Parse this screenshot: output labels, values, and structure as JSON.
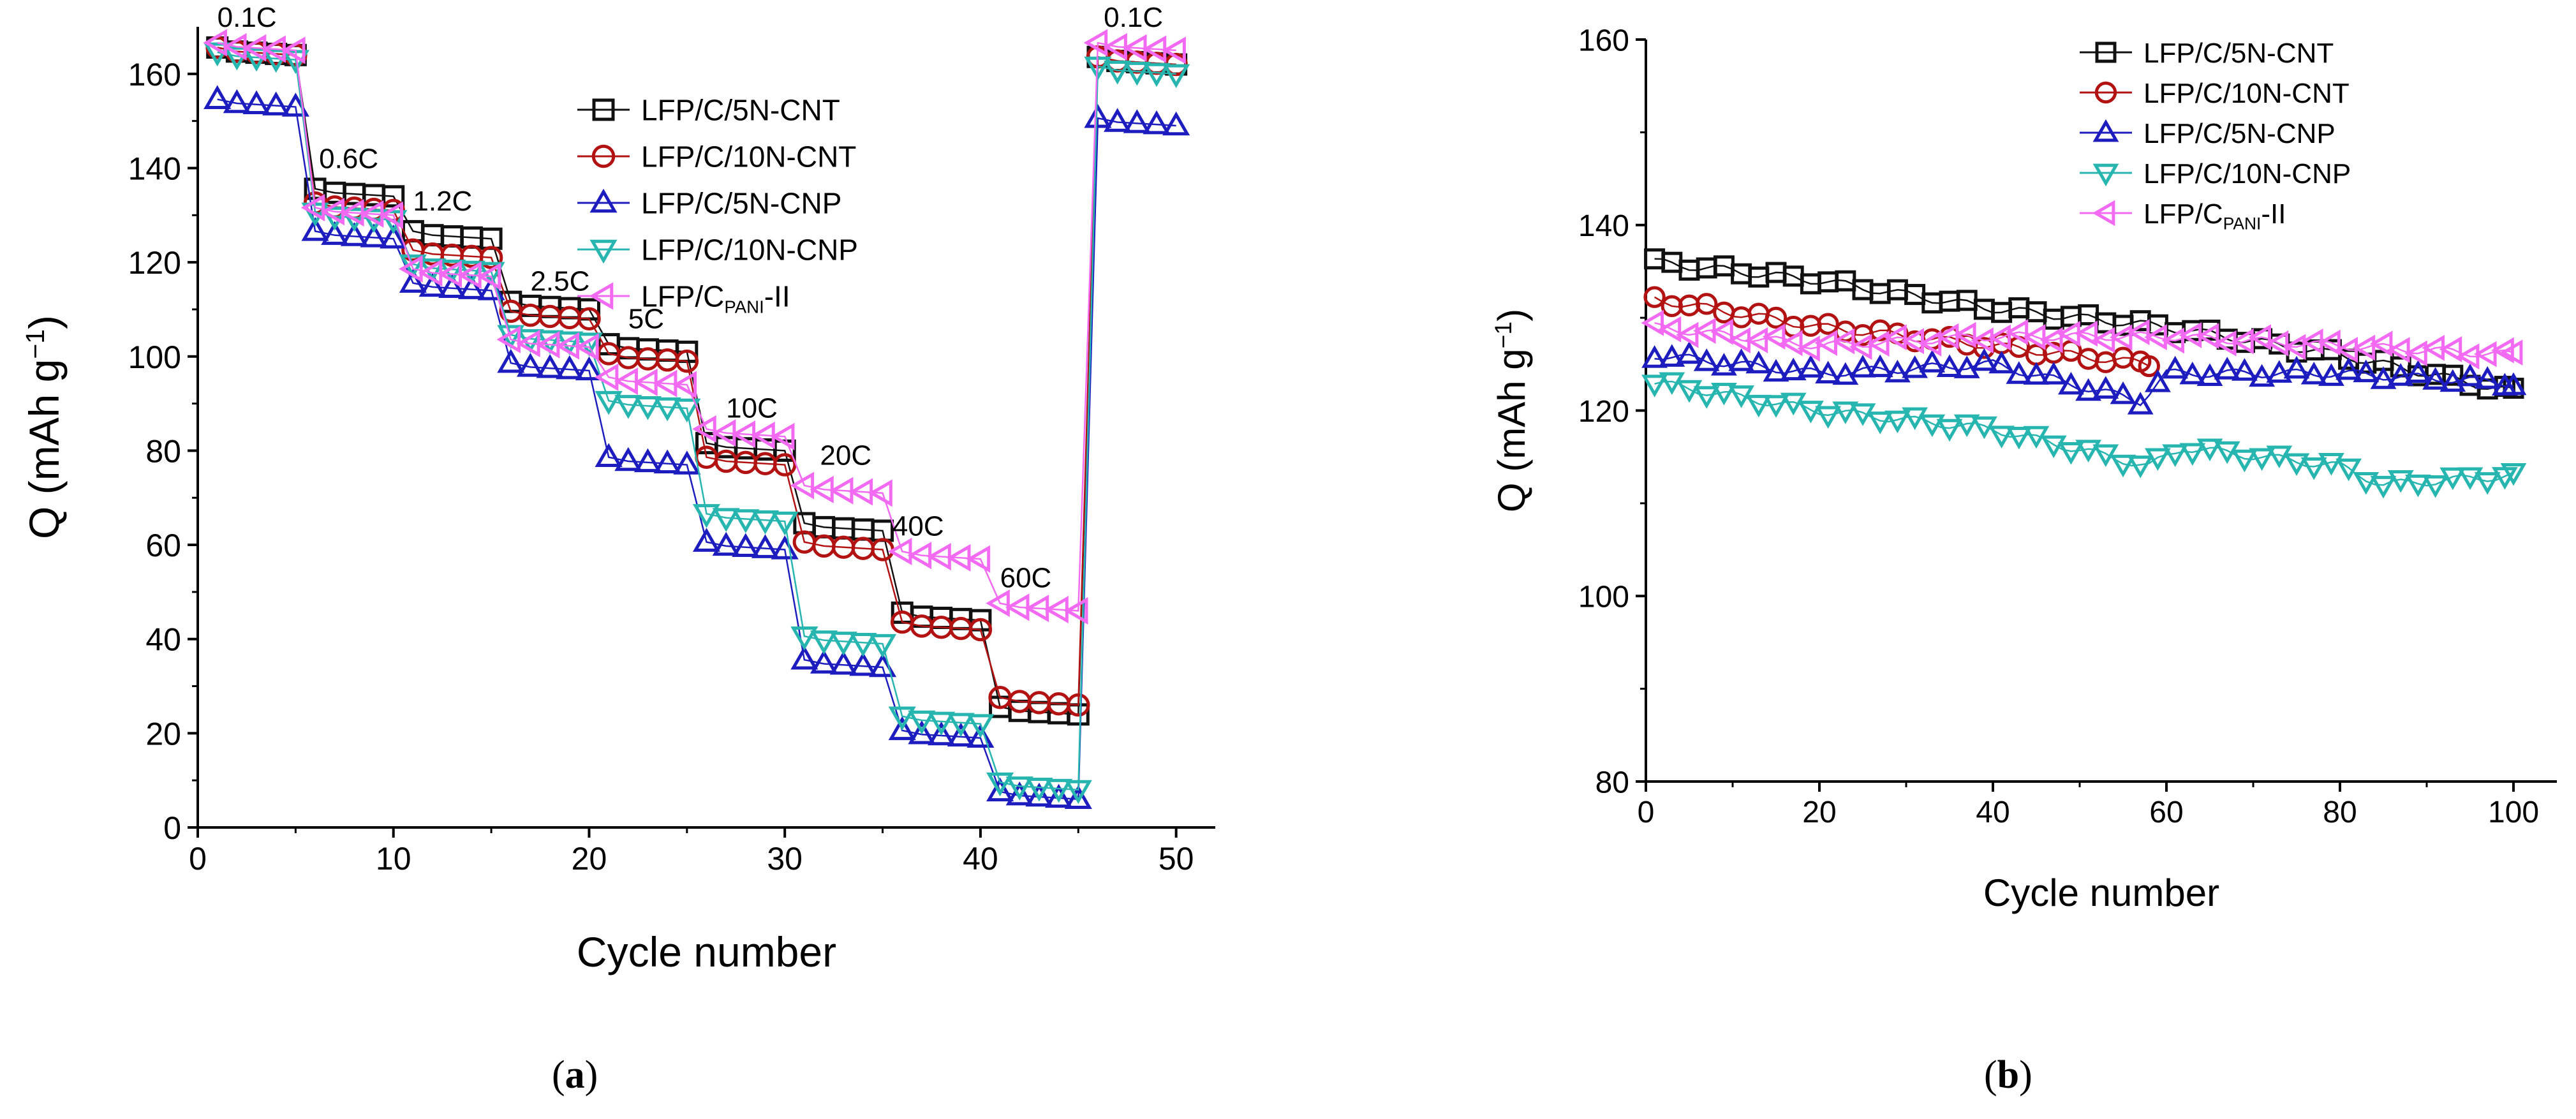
{
  "panel_labels": {
    "a": "a",
    "b": "b"
  },
  "colors": {
    "LFP/C/5N-CNT": "#111111",
    "LFP/C/10N-CNT": "#b31212",
    "LFP/C/5N-CNP": "#1d1dbf",
    "LFP/C/10N-CNP": "#27b5b0",
    "LFP/C_PANI-II": "#f26af2"
  },
  "chart_data": [
    {
      "id": "a",
      "type": "scatter",
      "xlabel": "Cycle number",
      "ylabel": "Q (mAh g",
      "ylabel_sup": "−1",
      "ylabel_close": ")",
      "xlim": [
        0,
        52
      ],
      "ylim": [
        0,
        170
      ],
      "xticks": [
        0,
        10,
        20,
        30,
        40,
        50
      ],
      "yticks": [
        0,
        20,
        40,
        60,
        80,
        100,
        120,
        140,
        160
      ],
      "rate_labels": [
        {
          "text": "0.1C",
          "x": 1,
          "y": 170
        },
        {
          "text": "0.6C",
          "x": 6.2,
          "y": 140
        },
        {
          "text": "1.2C",
          "x": 11,
          "y": 131
        },
        {
          "text": "2.5C",
          "x": 17,
          "y": 114
        },
        {
          "text": "5C",
          "x": 22,
          "y": 106
        },
        {
          "text": "10C",
          "x": 27,
          "y": 87
        },
        {
          "text": "20C",
          "x": 31.8,
          "y": 77
        },
        {
          "text": "40C",
          "x": 35.5,
          "y": 62
        },
        {
          "text": "60C",
          "x": 41,
          "y": 51
        },
        {
          "text": "0.1C",
          "x": 46.3,
          "y": 170
        }
      ],
      "legend": [
        {
          "name": "LFP/C/5N-CNT",
          "marker": "square"
        },
        {
          "name": "LFP/C/10N-CNT",
          "marker": "circle"
        },
        {
          "name": "LFP/C/5N-CNP",
          "marker": "triangle-up"
        },
        {
          "name": "LFP/C/10N-CNP",
          "marker": "triangle-down"
        },
        {
          "name": "LFP/C",
          "sub": "PANI",
          "suffix": "-II",
          "marker": "triangle-left"
        }
      ],
      "series": [
        {
          "name": "LFP/C/5N-CNT",
          "marker": "square",
          "step_values": [
            165,
            135,
            126,
            111,
            102,
            81,
            64,
            45,
            25,
            163
          ]
        },
        {
          "name": "LFP/C/10N-CNT",
          "marker": "circle",
          "step_values": [
            165,
            132,
            122,
            109,
            100,
            78,
            60,
            43,
            27,
            163
          ]
        },
        {
          "name": "LFP/C/5N-CNP",
          "marker": "triangle-up",
          "step_values": [
            154,
            126,
            115,
            98,
            78,
            60,
            35,
            20,
            7,
            150
          ]
        },
        {
          "name": "LFP/C/10N-CNP",
          "marker": "triangle-down",
          "step_values": [
            164,
            130,
            119,
            104,
            90,
            66,
            40,
            23,
            9,
            161
          ]
        },
        {
          "name": "LFP/C_PANI-II",
          "marker": "triangle-left",
          "step_values": [
            166,
            131,
            118,
            103,
            95,
            84,
            72,
            58,
            47,
            166
          ]
        }
      ],
      "cycles_per_step": 5
    },
    {
      "id": "b",
      "type": "scatter",
      "xlabel": "Cycle number",
      "ylabel": "Q (mAh g",
      "ylabel_sup": "−1",
      "ylabel_close": ")",
      "xlim": [
        0,
        105
      ],
      "ylim": [
        80,
        160
      ],
      "xticks": [
        0,
        20,
        40,
        60,
        80,
        100
      ],
      "yticks": [
        80,
        100,
        120,
        140,
        160
      ],
      "legend": [
        {
          "name": "LFP/C/5N-CNT",
          "marker": "square"
        },
        {
          "name": "LFP/C/10N-CNT",
          "marker": "circle"
        },
        {
          "name": "LFP/C/5N-CNP",
          "marker": "triangle-up"
        },
        {
          "name": "LFP/C/10N-CNP",
          "marker": "triangle-down"
        },
        {
          "name": "LFP/C",
          "sub": "PANI",
          "suffix": "-II",
          "marker": "triangle-left"
        }
      ],
      "series": [
        {
          "name": "LFP/C/5N-CNT",
          "marker": "square",
          "anchors": [
            [
              1,
              136
            ],
            [
              20,
              134
            ],
            [
              40,
              131
            ],
            [
              60,
              129
            ],
            [
              80,
              126
            ],
            [
              100,
              122
            ]
          ]
        },
        {
          "name": "LFP/C/10N-CNT",
          "marker": "circle",
          "anchors": [
            [
              1,
              132
            ],
            [
              20,
              129
            ],
            [
              40,
              127
            ],
            [
              58,
              125
            ]
          ]
        },
        {
          "name": "LFP/C/5N-CNP",
          "marker": "triangle-up",
          "anchors": [
            [
              1,
              126
            ],
            [
              20,
              124
            ],
            [
              40,
              125
            ],
            [
              57,
              121
            ],
            [
              60,
              124
            ],
            [
              80,
              124
            ],
            [
              100,
              123
            ]
          ]
        },
        {
          "name": "LFP/C/10N-CNP",
          "marker": "triangle-down",
          "anchors": [
            [
              1,
              123
            ],
            [
              20,
              120
            ],
            [
              40,
              118
            ],
            [
              58,
              114
            ],
            [
              62,
              116
            ],
            [
              80,
              114
            ],
            [
              85,
              112
            ],
            [
              100,
              113
            ]
          ]
        },
        {
          "name": "LFP/C_PANI-II",
          "marker": "triangle-left",
          "anchors": [
            [
              1,
              129
            ],
            [
              20,
              127
            ],
            [
              40,
              128
            ],
            [
              60,
              128
            ],
            [
              80,
              127
            ],
            [
              100,
              126
            ]
          ]
        }
      ]
    }
  ]
}
